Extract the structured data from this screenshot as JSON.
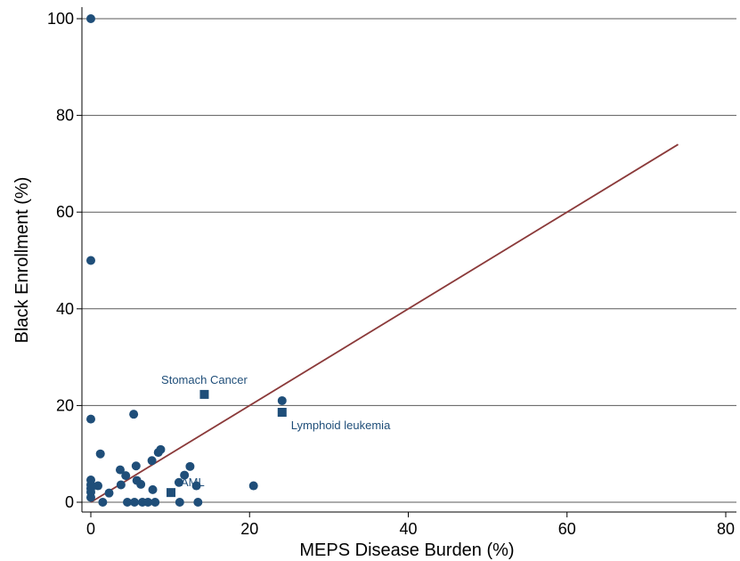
{
  "chart_data": {
    "type": "scatter",
    "title": "",
    "xlabel": "MEPS Disease Burden (%)",
    "ylabel": "Black Enrollment (%)",
    "xlim": [
      0,
      80
    ],
    "ylim": [
      0,
      100
    ],
    "xticks": [
      "0",
      "20",
      "40",
      "60",
      "80"
    ],
    "yticks": [
      "0",
      "20",
      "40",
      "60",
      "80",
      "100"
    ],
    "grid": "horizontal",
    "colors": {
      "marker": "#1f4e79",
      "fit_line": "#8b3a3a",
      "grid": "#5a5a5a"
    },
    "series": [
      {
        "marker": "circle",
        "points": [
          [
            0,
            100
          ],
          [
            0,
            50
          ],
          [
            0,
            17.2
          ],
          [
            0,
            4.6
          ],
          [
            0,
            3.6
          ],
          [
            0,
            2.8
          ],
          [
            0,
            2.1
          ],
          [
            0,
            1.0
          ],
          [
            0.9,
            3.4
          ],
          [
            1.2,
            10.0
          ],
          [
            1.5,
            0
          ],
          [
            2.3,
            1.9
          ],
          [
            3.7,
            6.7
          ],
          [
            3.8,
            3.6
          ],
          [
            4.4,
            5.5
          ],
          [
            4.6,
            0
          ],
          [
            5.4,
            18.2
          ],
          [
            5.5,
            0
          ],
          [
            5.7,
            7.5
          ],
          [
            5.8,
            4.5
          ],
          [
            6.3,
            3.7
          ],
          [
            6.5,
            0
          ],
          [
            7.2,
            0
          ],
          [
            7.7,
            8.6
          ],
          [
            7.8,
            2.6
          ],
          [
            8.1,
            0
          ],
          [
            8.5,
            10.3
          ],
          [
            8.8,
            10.9
          ],
          [
            11.1,
            4.1
          ],
          [
            11.2,
            0
          ],
          [
            11.8,
            5.6
          ],
          [
            12.5,
            7.4
          ],
          [
            13.3,
            3.4
          ],
          [
            13.5,
            0
          ],
          [
            20.5,
            3.4
          ],
          [
            24.1,
            21.0
          ]
        ]
      },
      {
        "marker": "square",
        "points": [
          [
            14.3,
            22.3
          ],
          [
            24.1,
            18.6
          ],
          [
            10.1,
            2.0
          ]
        ]
      }
    ],
    "annotations": [
      {
        "text": "Stomach Cancer",
        "x": 14.3,
        "y": 22.3
      },
      {
        "text": "Lymphoid leukemia",
        "x": 24.1,
        "y": 18.6
      },
      {
        "text": "AML",
        "x": 10.1,
        "y": 2.0
      }
    ],
    "fit_line": {
      "x": [
        0,
        74
      ],
      "y": [
        0,
        74
      ]
    }
  }
}
